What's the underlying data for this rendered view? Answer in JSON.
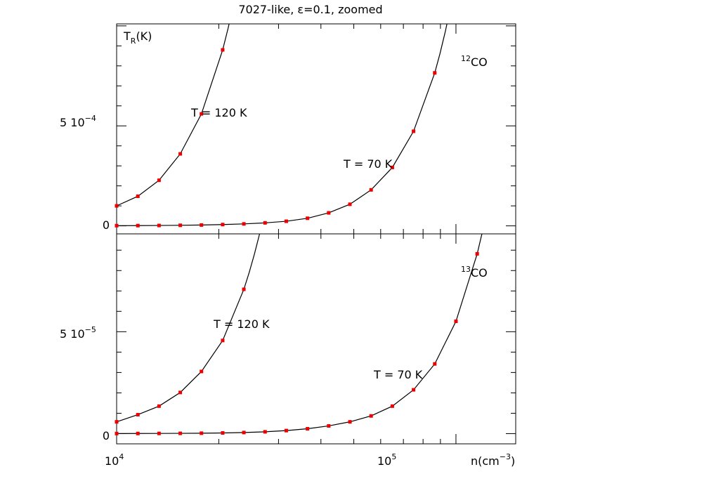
{
  "title": "7027-like, ε=0.1, zoomed",
  "xlabel_base": "n(cm",
  "xlabel_exp": "−3",
  "xlabel_close": ")",
  "x_tick_labels": [
    {
      "base": "10",
      "exp": "4",
      "value": 10000
    },
    {
      "base": "10",
      "exp": "5",
      "value": 100000
    }
  ],
  "chart_data": [
    {
      "type": "line",
      "panel": "top",
      "ylabel_base": "T",
      "ylabel_sub": "R",
      "ylabel_rest": "(K)",
      "species_sup": "12",
      "species": "CO",
      "x_scale": "log",
      "xlim": [
        10000,
        150000
      ],
      "ylim": [
        -4e-05,
        0.00101
      ],
      "y_tick_labels": [
        {
          "text": "0",
          "exp": "",
          "value": 0
        },
        {
          "text": "5 10",
          "exp": "−4",
          "value": 0.0005
        }
      ],
      "series": [
        {
          "curve_label": "T = 120 K",
          "x": [
            10000,
            11550,
            13335,
            15400,
            17780,
            20535
          ],
          "y": [
            0.0001,
            0.000148,
            0.000228,
            0.00036,
            0.00056,
            0.00088
          ]
        },
        {
          "curve_label": "T = 70 K",
          "x": [
            10000,
            11550,
            13335,
            15400,
            17780,
            20535,
            23710,
            27380,
            31620,
            36520,
            42170,
            48700,
            56230,
            64940,
            74990,
            86600
          ],
          "y": [
            1e-06,
            1.3e-06,
            1.9e-06,
            2.8e-06,
            4.2e-06,
            6.5e-06,
            9.8e-06,
            1.5e-05,
            2.3e-05,
            3.8e-05,
            6.5e-05,
            0.000108,
            0.00018,
            0.000292,
            0.000473,
            0.000765
          ]
        }
      ]
    },
    {
      "type": "line",
      "panel": "bottom",
      "species_sup": "13",
      "species": "CO",
      "x_scale": "log",
      "xlim": [
        10000,
        150000
      ],
      "ylim": [
        -5e-06,
        9.8e-05
      ],
      "y_tick_labels": [
        {
          "text": "0",
          "exp": "",
          "value": 0
        },
        {
          "text": "5 10",
          "exp": "−5",
          "value": 5e-05
        }
      ],
      "series": [
        {
          "curve_label": "T = 120 K",
          "x": [
            10000,
            11550,
            13335,
            15400,
            17780,
            20535,
            23710
          ],
          "y": [
            5.8e-06,
            9.3e-06,
            1.35e-05,
            2.02e-05,
            3.05e-05,
            4.57e-05,
            7.08e-05
          ]
        },
        {
          "curve_label": "T = 70 K",
          "x": [
            10000,
            11550,
            13335,
            15400,
            17780,
            20535,
            23710,
            27380,
            31620,
            36520,
            42170,
            48700,
            56230,
            64940,
            74990,
            86600,
            100000,
            115500
          ],
          "y": [
            5e-08,
            7e-08,
            1e-07,
            1.5e-07,
            2.2e-07,
            3.5e-07,
            5.5e-07,
            9e-07,
            1.5e-06,
            2.4e-06,
            3.8e-06,
            5.8e-06,
            8.7e-06,
            1.35e-05,
            2.15e-05,
            3.42e-05,
            5.51e-05,
            8.82e-05
          ]
        }
      ]
    }
  ]
}
